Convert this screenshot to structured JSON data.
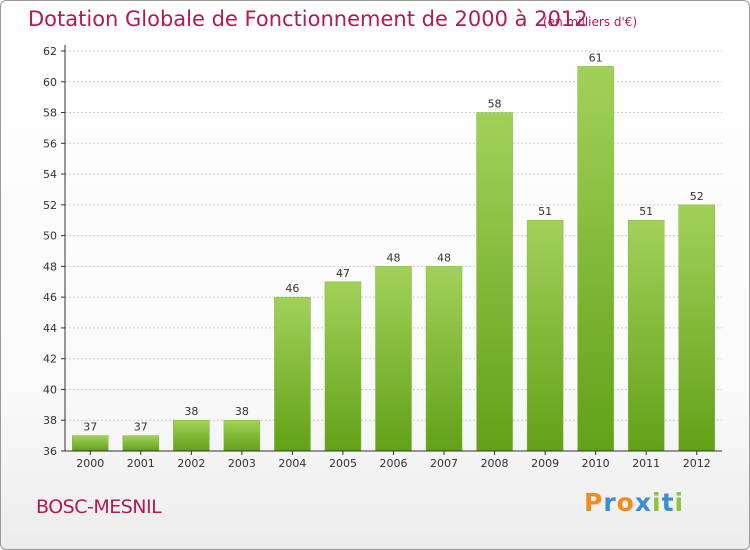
{
  "title": "Dotation Globale de Fonctionnement de 2000 à 2012",
  "subtitle": "(en milliers d'€)",
  "commune": "BOSC-MESNIL",
  "brand": {
    "letters": [
      "P",
      "r",
      "o",
      "x",
      "i",
      "t",
      "i"
    ],
    "colors": [
      "#f08c1e",
      "#3a8fd0",
      "#f08c1e",
      "#3a8fd0",
      "#8cc43c",
      "#3a8fd0",
      "#8cc43c"
    ]
  },
  "colors": {
    "accent": "#b01a58",
    "bar_top": "#a2d15a",
    "bar_bottom": "#62a118",
    "grid": "#cccccc",
    "axis": "#333333"
  },
  "chart_data": {
    "type": "bar",
    "categories": [
      "2000",
      "2001",
      "2002",
      "2003",
      "2004",
      "2005",
      "2006",
      "2007",
      "2008",
      "2009",
      "2010",
      "2011",
      "2012"
    ],
    "values": [
      37,
      37,
      38,
      38,
      46,
      47,
      48,
      48,
      58,
      51,
      61,
      51,
      52
    ],
    "ylim": [
      36,
      62
    ],
    "yticks": [
      36,
      38,
      40,
      42,
      44,
      46,
      48,
      50,
      52,
      54,
      56,
      58,
      60,
      62
    ],
    "grid": true,
    "title": "Dotation Globale de Fonctionnement de 2000 à 2012",
    "ylabel": "(en milliers d'€)",
    "xlabel": ""
  }
}
